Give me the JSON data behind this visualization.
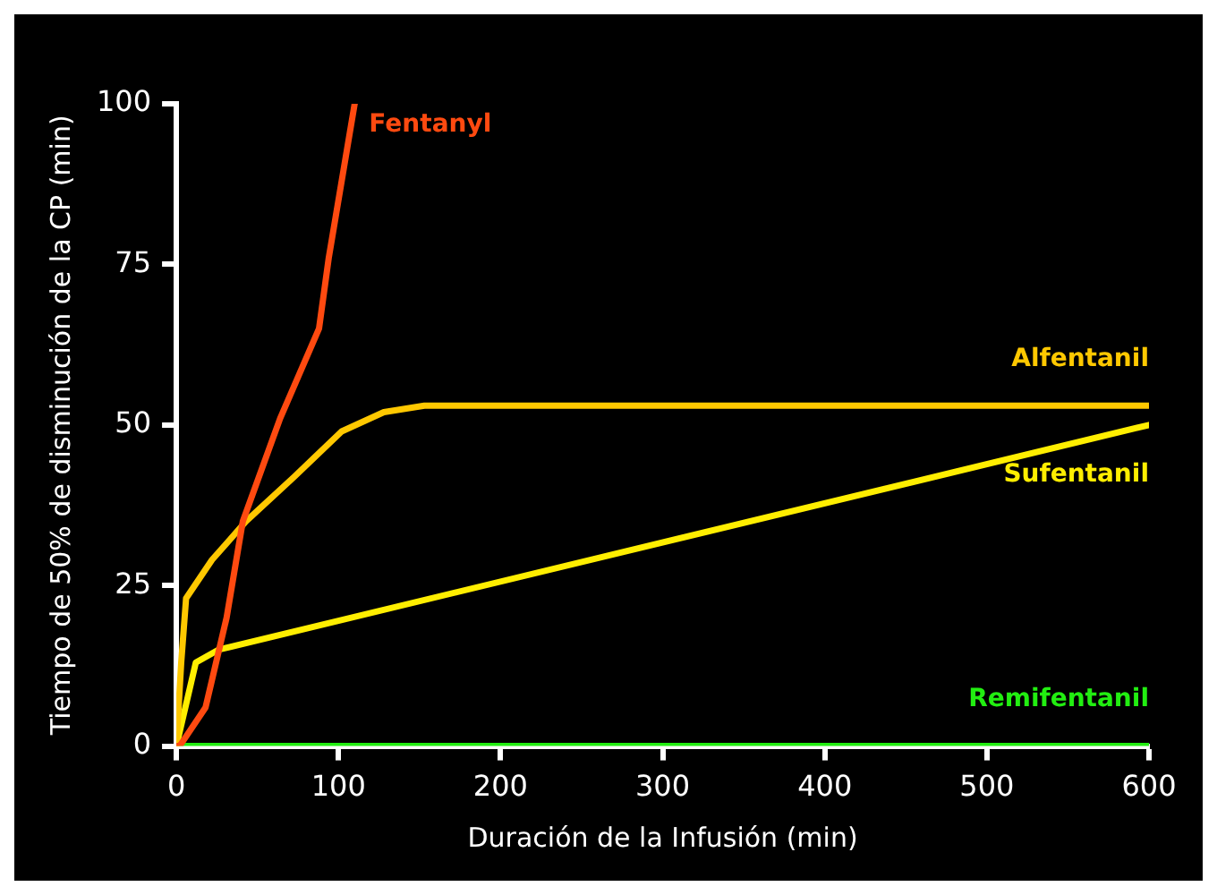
{
  "chart_data": {
    "type": "line",
    "xlabel": "Duración de la Infusión (min)",
    "ylabel": "Tiempo de 50% de disminución de la CP (min)",
    "xlim": [
      0,
      600
    ],
    "xticks": [
      0,
      100,
      200,
      300,
      400,
      500,
      600
    ],
    "ylim": [
      0,
      100
    ],
    "yticks": [
      0,
      25,
      50,
      75,
      100
    ],
    "grid": false,
    "legend": false,
    "marker": "none",
    "line_style": "solid",
    "series": [
      {
        "name": "Fentanyl",
        "color": "#ff4a10",
        "x": [
          0,
          2,
          18,
          31,
          41,
          64,
          88,
          94,
          110
        ],
        "values": [
          0,
          0,
          6,
          20,
          35,
          51,
          65,
          76,
          100
        ]
      },
      {
        "name": "Alfentanil",
        "color": "#ffc800",
        "x": [
          0,
          3,
          6,
          22,
          43,
          73,
          102,
          128,
          153,
          600
        ],
        "values": [
          0,
          13,
          23,
          29,
          35,
          42,
          49,
          52,
          53,
          53
        ]
      },
      {
        "name": "Sufentanil",
        "color": "#ffee00",
        "x": [
          0,
          12,
          26,
          600
        ],
        "values": [
          0,
          13,
          15,
          50
        ]
      },
      {
        "name": "Remifentanil",
        "color": "#22ee11",
        "x": [
          0,
          600
        ],
        "values": [
          0,
          0
        ]
      }
    ]
  }
}
